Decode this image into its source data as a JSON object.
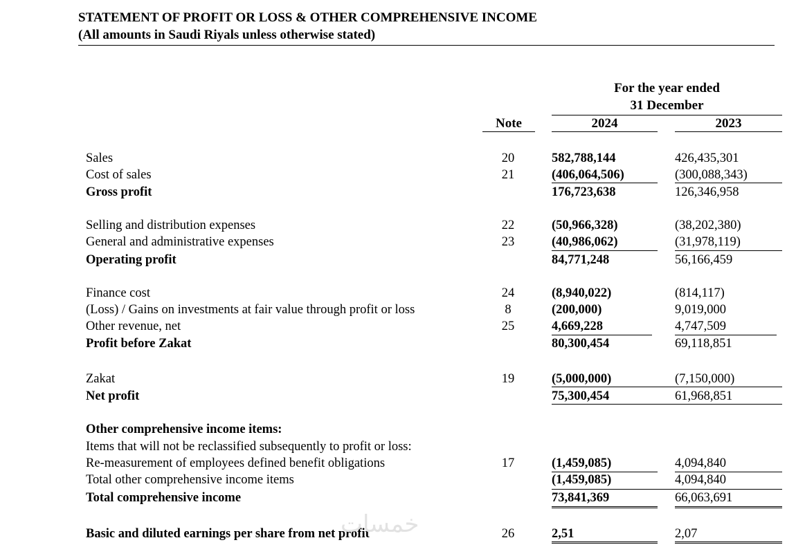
{
  "title": "STATEMENT OF PROFIT OR LOSS & OTHER COMPREHENSIVE INCOME",
  "subtitle": "(All amounts in Saudi Riyals unless otherwise stated)",
  "columns": {
    "period_line1": "For the year ended",
    "period_line2": "31 December",
    "note": "Note",
    "y1": "2024",
    "y2": "2023"
  },
  "rows": [
    {
      "label": "Sales",
      "note": "20",
      "v2024": "582,788,144",
      "v2023": "426,435,301"
    },
    {
      "label": "Cost of sales",
      "note": "21",
      "v2024": "(406,064,506)",
      "v2023": "(300,088,343)"
    },
    {
      "label": "Gross profit",
      "note": "",
      "v2024": "176,723,638",
      "v2023": "126,346,958"
    },
    {
      "label": "Selling and distribution expenses",
      "note": "22",
      "v2024": "(50,966,328)",
      "v2023": "(38,202,380)"
    },
    {
      "label": "General and administrative expenses",
      "note": "23",
      "v2024": "(40,986,062)",
      "v2023": "(31,978,119)"
    },
    {
      "label": "Operating profit",
      "note": "",
      "v2024": "84,771,248",
      "v2023": "56,166,459"
    },
    {
      "label": "Finance cost",
      "note": "24",
      "v2024": "(8,940,022)",
      "v2023": "(814,117)"
    },
    {
      "label": "(Loss) / Gains on investments at fair value through profit or loss",
      "note": "8",
      "v2024": "(200,000)",
      "v2023": "9,019,000"
    },
    {
      "label": "Other revenue, net",
      "note": "25",
      "v2024": "4,669,228",
      "v2023": "4,747,509"
    },
    {
      "label": "Profit before Zakat",
      "note": "",
      "v2024": "80,300,454",
      "v2023": "69,118,851"
    },
    {
      "label": "Zakat",
      "note": "19",
      "v2024": "(5,000,000)",
      "v2023": "(7,150,000)"
    },
    {
      "label": "Net profit",
      "note": "",
      "v2024": "75,300,454",
      "v2023": "61,968,851"
    },
    {
      "label": "Other comprehensive income items:",
      "note": "",
      "v2024": "",
      "v2023": ""
    },
    {
      "label": "Items that will not be reclassified subsequently to profit or loss:",
      "note": "",
      "v2024": "",
      "v2023": ""
    },
    {
      "label": "Re-measurement of employees defined benefit obligations",
      "note": "17",
      "v2024": "(1,459,085)",
      "v2023": "4,094,840"
    },
    {
      "label": "Total other comprehensive income items",
      "note": "",
      "v2024": "(1,459,085)",
      "v2023": "4,094,840"
    },
    {
      "label": "Total comprehensive income",
      "note": "",
      "v2024": "73,841,369",
      "v2023": "66,063,691"
    },
    {
      "label": "Basic and diluted earnings per share from net profit",
      "note": "26",
      "v2024": "2,51",
      "v2023": "2,07"
    }
  ],
  "watermark": "خمسات"
}
